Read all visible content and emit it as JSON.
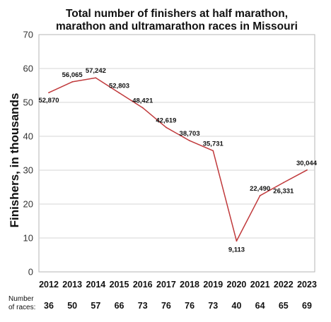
{
  "chart_data": {
    "type": "line",
    "title_lines": [
      "Total number of finishers at half marathon,",
      "marathon and ultramarathon races in Missouri"
    ],
    "ylabel": "Finishers, in thousands",
    "xlabel": "",
    "ylim": [
      0,
      70
    ],
    "yticks": [
      0,
      10,
      20,
      30,
      40,
      50,
      60,
      70
    ],
    "grid": true,
    "line_color": "#c0393b",
    "categories": [
      "2012",
      "2013",
      "2014",
      "2015",
      "2016",
      "2017",
      "2018",
      "2019",
      "2020",
      "2021",
      "2022",
      "2023"
    ],
    "values": [
      52.87,
      56.065,
      57.242,
      52.803,
      48.421,
      42.619,
      38.703,
      35.731,
      9.113,
      22.49,
      26.331,
      30.044
    ],
    "data_labels": [
      "52,870",
      "56,065",
      "57,242",
      "52,803",
      "48,421",
      "42,619",
      "38,703",
      "35,731",
      "9,113",
      "22,490",
      "26,331",
      "30,044"
    ],
    "races_label_lines": [
      "Number",
      "of races:"
    ],
    "races": [
      "36",
      "50",
      "57",
      "66",
      "73",
      "76",
      "76",
      "73",
      "40",
      "64",
      "65",
      "69"
    ]
  }
}
